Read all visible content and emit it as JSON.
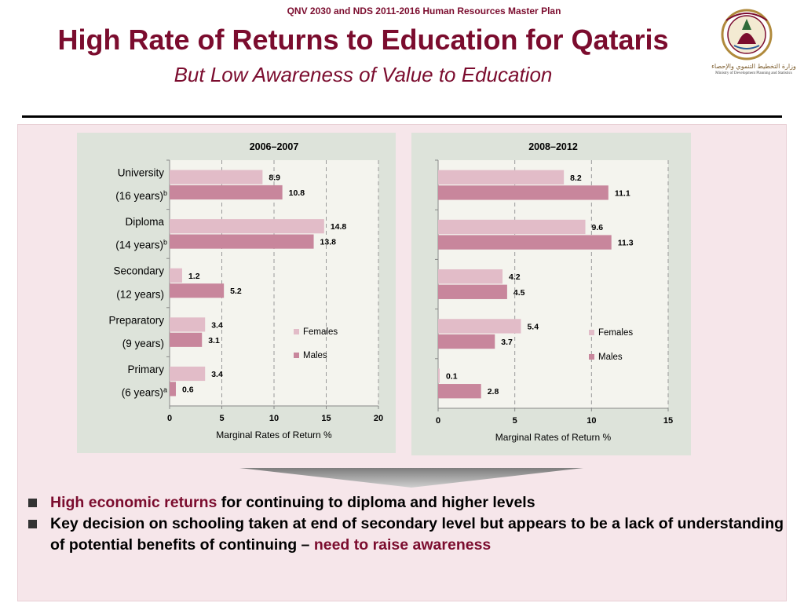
{
  "slide": {
    "header_note": "QNV 2030 and NDS 2011-2016 Human Resources Master Plan",
    "title": "High Rate of Returns to Education for Qataris",
    "subtitle": "But Low Awareness of Value to Education",
    "logo_arabic": "وزارة التخطيط التنموي والإحصاء",
    "logo_english": "Ministry of Development Planning and Statistics"
  },
  "bullets": [
    {
      "highlight": "High economic returns",
      "text": " for continuing to diploma and higher levels"
    },
    {
      "text": "Key decision on schooling taken at end of secondary level but appears to be a lack of understanding of potential benefits of continuing – ",
      "highlight": "need to raise awareness"
    }
  ],
  "colors": {
    "maroon": "#7b0c2e",
    "females_bar": "#e2bcc8",
    "males_bar": "#c8869c",
    "panel_bg": "#dde3da",
    "slide_bg": "#f6e6ea"
  },
  "chart_data": [
    {
      "type": "bar",
      "orientation": "horizontal",
      "title": "2006–2007",
      "xlabel": "Marginal Rates of Return %",
      "xlim": [
        0,
        20
      ],
      "xticks": [
        0,
        5,
        10,
        15,
        20
      ],
      "categories": [
        {
          "line1": "University",
          "line2": "(16 years)",
          "sup": "b"
        },
        {
          "line1": "Diploma",
          "line2": "(14 years)",
          "sup": "b"
        },
        {
          "line1": "Secondary",
          "line2": "(12 years)",
          "sup": ""
        },
        {
          "line1": "Preparatory",
          "line2": "(9 years)",
          "sup": ""
        },
        {
          "line1": "Primary",
          "line2": "(6 years)",
          "sup": "a"
        }
      ],
      "series": [
        {
          "name": "Females",
          "values": [
            8.9,
            14.8,
            1.2,
            3.4,
            3.4
          ]
        },
        {
          "name": "Males",
          "values": [
            10.8,
            13.8,
            5.2,
            3.1,
            0.6
          ]
        }
      ],
      "legend_position": "right",
      "grid": true
    },
    {
      "type": "bar",
      "orientation": "horizontal",
      "title": "2008–2012",
      "xlabel": "Marginal Rates of Return %",
      "xlim": [
        0,
        15
      ],
      "xticks": [
        0,
        5,
        10,
        15
      ],
      "categories": [
        "University",
        "Diploma",
        "Secondary",
        "Preparatory",
        "Primary"
      ],
      "series": [
        {
          "name": "Females",
          "values": [
            8.2,
            9.6,
            4.2,
            5.4,
            0.1
          ]
        },
        {
          "name": "Males",
          "values": [
            11.1,
            11.3,
            4.5,
            3.7,
            2.8
          ]
        }
      ],
      "legend_position": "right",
      "grid": true
    }
  ]
}
